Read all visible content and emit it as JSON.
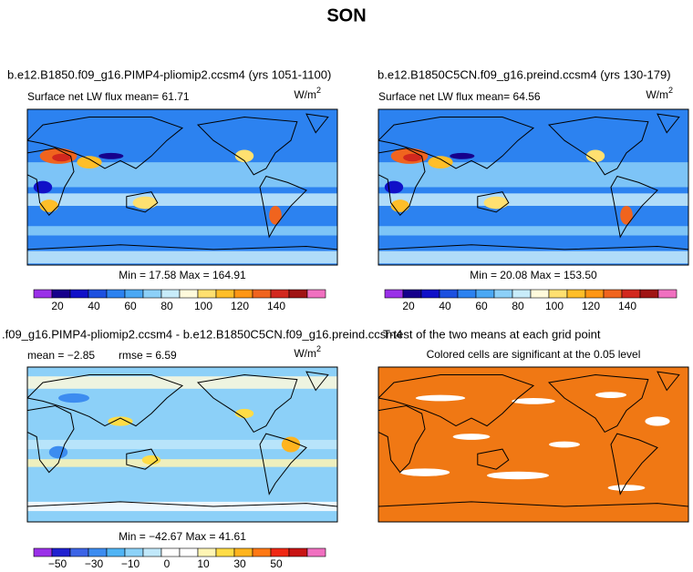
{
  "title": "SON",
  "panels": [
    {
      "header": "b.e12.B1850.f09_g16.PIMP4-pliomip2.ccsm4 (yrs 1051-1100)",
      "subtitle": "Surface net LW flux mean=   61.71",
      "units": {
        "base": "W/m",
        "exp": "2"
      },
      "minmax": "Min =  17.58 Max = 164.91",
      "colorbar": {
        "colors": [
          "#9a30e8",
          "#16008c",
          "#1010c8",
          "#1c50e0",
          "#2c82f0",
          "#4aa8f4",
          "#8cd0f8",
          "#c8ecfa",
          "#fffadc",
          "#ffe070",
          "#ffbe28",
          "#ff9614",
          "#f0641e",
          "#d2281e",
          "#a01414",
          "#f070c0"
        ],
        "labels": [
          "20",
          "40",
          "60",
          "80",
          "100",
          "120",
          "140"
        ]
      }
    },
    {
      "header": "b.e12.B1850C5CN.f09_g16.preind.ccsm4 (yrs 130-179)",
      "subtitle": "Surface net LW flux mean=   64.56",
      "units": {
        "base": "W/m",
        "exp": "2"
      },
      "minmax": "Min =  20.08 Max = 153.50",
      "colorbar": {
        "colors": [
          "#9a30e8",
          "#16008c",
          "#1010c8",
          "#1c50e0",
          "#2c82f0",
          "#4aa8f4",
          "#8cd0f8",
          "#c8ecfa",
          "#fffadc",
          "#ffe070",
          "#ffbe28",
          "#ff9614",
          "#f0641e",
          "#d2281e",
          "#a01414",
          "#f070c0"
        ],
        "labels": [
          "20",
          "40",
          "60",
          "80",
          "100",
          "120",
          "140"
        ]
      }
    },
    {
      "header": ".f09_g16.PIMP4-pliomip2.ccsm4 - b.e12.B1850C5CN.f09_g16.preind.ccsm4",
      "stats": [
        "mean = −2.85",
        "rmse =    6.59"
      ],
      "units": {
        "base": "W/m",
        "exp": "2"
      },
      "minmax": "Min = −42.67 Max =  41.61",
      "colorbar": {
        "colors": [
          "#9a30e8",
          "#2020d0",
          "#3c64e6",
          "#3c8cf0",
          "#50b4f4",
          "#8cd2f8",
          "#c0e8fa",
          "#ffffff",
          "#ffffff",
          "#fff5b4",
          "#ffdc46",
          "#ffb41e",
          "#ff7814",
          "#f02814",
          "#c81414",
          "#f070c0"
        ],
        "labels": [
          "−50",
          "−30",
          "−10",
          "0",
          "10",
          "30",
          "50"
        ]
      }
    },
    {
      "header": "T-test of the two means at each grid point",
      "subtitle": "Colored cells are significant at the 0.05 level"
    }
  ]
}
